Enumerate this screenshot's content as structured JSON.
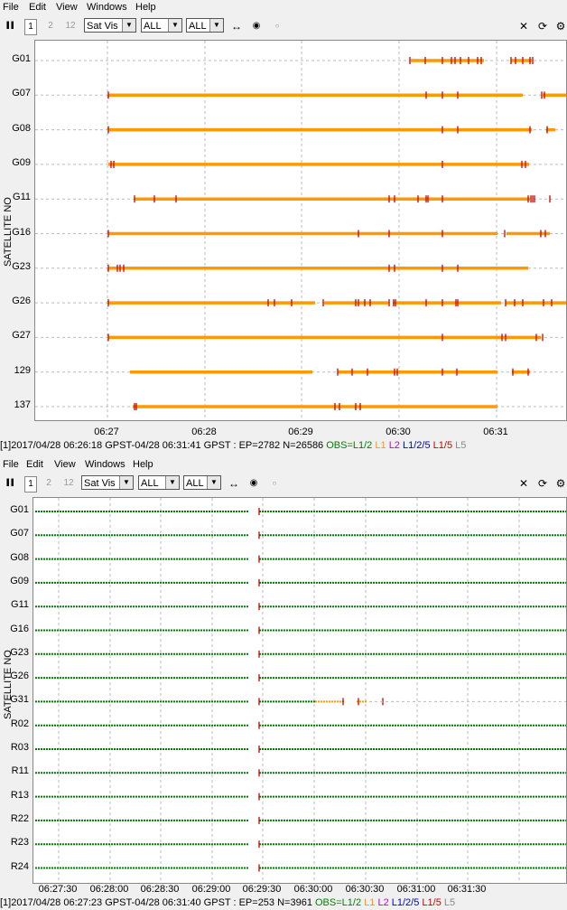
{
  "menu": {
    "file": "File",
    "edit": "Edit",
    "view": "View",
    "windows": "Windows",
    "help": "Help"
  },
  "toolbar": {
    "btn_pause": "▐▐",
    "btn_1": "1",
    "btn_2": "2",
    "btn_12": "12",
    "plot_type": "Sat Vis",
    "sel_sys": "ALL",
    "sel_sat": "ALL",
    "icons": [
      "fit-horizontal-icon",
      "center-icon",
      "dot-icon",
      "close-icon",
      "refresh-icon",
      "gear-icon"
    ]
  },
  "top": {
    "y_axis_title": "SATELLITE NO",
    "sats": [
      "G01",
      "G07",
      "G08",
      "G09",
      "G11",
      "G16",
      "G23",
      "G26",
      "G27",
      "129",
      "137"
    ],
    "x_ticks": [
      "06:27",
      "06:28",
      "06:29",
      "06:30",
      "06:31"
    ],
    "status": {
      "prefix": "[1]2017/04/28 06:26:18 GPST-04/28 06:31:41 GPST : EP=2782 N=26586 ",
      "obs": "OBS=L1/2",
      "l1": "L1",
      "l2": "L2",
      "l125": "L1/2/5",
      "l15": "L1/5",
      "l5": "L5"
    }
  },
  "bottom": {
    "y_axis_title": "SATELLITE NO",
    "sats": [
      "G01",
      "G07",
      "G08",
      "G09",
      "G11",
      "G16",
      "G23",
      "G26",
      "G31",
      "R02",
      "R03",
      "R11",
      "R13",
      "R22",
      "R23",
      "R24"
    ],
    "x_ticks": [
      "06:27:30",
      "06:28:00",
      "06:28:30",
      "06:29:00",
      "06:29:30",
      "06:30:00",
      "06:30:30",
      "06:31:00",
      "06:31:30"
    ],
    "status": {
      "prefix": "[1]2017/04/28 06:27:23 GPST-04/28 06:31:40 GPST : EP=253 N=3961 ",
      "obs": "OBS=L1/2",
      "l1": "L1",
      "l2": "L2",
      "l125": "L1/2/5",
      "l15": "L1/5",
      "l5": "L5"
    }
  },
  "colors": {
    "obs": "#008000",
    "l1": "#ff9900",
    "l2": "#cc00cc",
    "l125": "#0000cc",
    "l15": "#cc0000",
    "l5": "#888888",
    "slip": "#cc0000",
    "grid": "#bbbbbb"
  }
}
